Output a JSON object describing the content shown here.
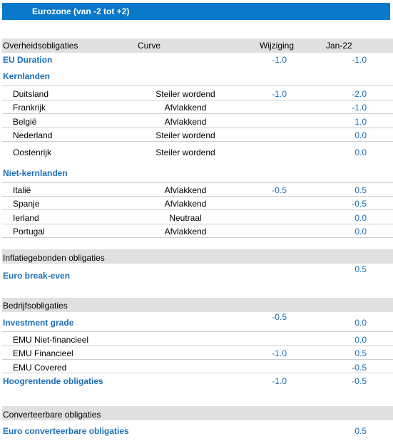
{
  "title": "Eurozone (van -2 tot +2)",
  "header": {
    "col1": "Overheidsobligaties",
    "col2": "Curve",
    "col3": "Wijziging",
    "col4": "Jan-22"
  },
  "eu_duration": {
    "label": "EU Duration",
    "change": "-1.0",
    "value": "-1.0"
  },
  "kernlanden": {
    "label": "Kernlanden",
    "rows": [
      {
        "name": "Duitsland",
        "curve": "Steiler wordend",
        "change": "-1.0",
        "value": "-2.0"
      },
      {
        "name": "Frankrijk",
        "curve": "Afvlakkend",
        "change": "",
        "value": "-1.0"
      },
      {
        "name": "België",
        "curve": "Afvlakkend",
        "change": "",
        "value": "1.0"
      },
      {
        "name": "Nederland",
        "curve": "Steiler wordend",
        "change": "",
        "value": "0.0"
      },
      {
        "name": "Oostenrijk",
        "curve": "Steiler wordend",
        "change": "",
        "value": "0.0"
      }
    ]
  },
  "niet_kernlanden": {
    "label": "Niet-kernlanden",
    "rows": [
      {
        "name": "Italië",
        "curve": "Afvlakkend",
        "change": "-0.5",
        "value": "0.5"
      },
      {
        "name": "Spanje",
        "curve": "Afvlakkend",
        "change": "",
        "value": "-0.5"
      },
      {
        "name": "Ierland",
        "curve": "Neutraal",
        "change": "",
        "value": "0.0"
      },
      {
        "name": "Portugal",
        "curve": "Afvlakkend",
        "change": "",
        "value": "0.0"
      }
    ]
  },
  "inflatie": {
    "section": "Inflatiegebonden obligaties",
    "label": "Euro break-even",
    "value": "0.5"
  },
  "bedrijf": {
    "section": "Bedrijfsobligaties",
    "ig": {
      "label": "Investment grade",
      "change": "-0.5",
      "value": "0.0"
    },
    "rows": [
      {
        "name": "EMU Niet-financieel",
        "change": "",
        "value": "0.0"
      },
      {
        "name": "EMU Financieel",
        "change": "-1.0",
        "value": "0.5"
      },
      {
        "name": "EMU Covered",
        "change": "",
        "value": "-0.5"
      }
    ],
    "hy": {
      "label": "Hoogrentende obligaties",
      "change": "-1.0",
      "value": "-0.5"
    }
  },
  "converteerbaar": {
    "section": "Converteerbare obligaties",
    "label": "Euro converteerbare obligaties",
    "value": "0.5"
  }
}
